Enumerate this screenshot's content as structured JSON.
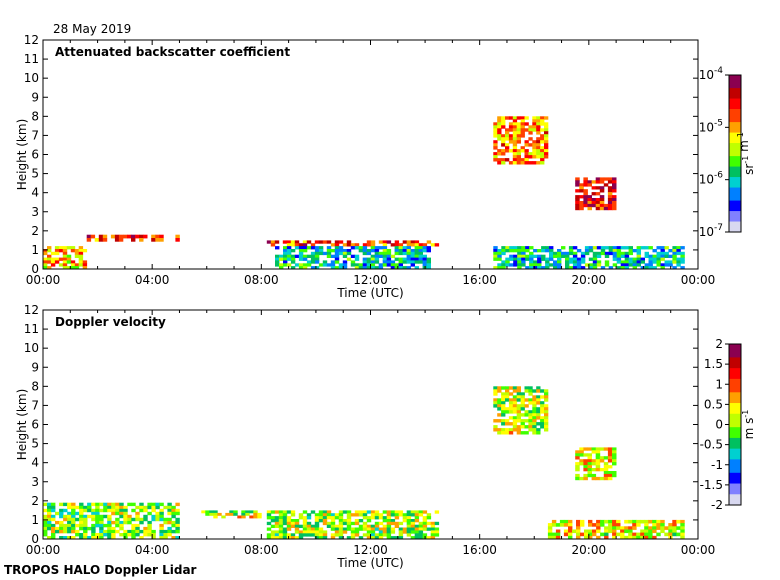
{
  "date": "28 May 2019",
  "footer": "TROPOS HALO Doppler Lidar",
  "colors": {
    "cmap": [
      "#ffffff",
      "#d8d8f0",
      "#8080ff",
      "#0000ff",
      "#0080ff",
      "#00d0d0",
      "#00c060",
      "#40ff00",
      "#c0ff00",
      "#ffff00",
      "#ffa000",
      "#ff4000",
      "#ff0000",
      "#c00000",
      "#8b0050"
    ]
  },
  "chart_data": [
    {
      "type": "heatmap",
      "title": "Attenuated backscatter coefficient",
      "xlabel": "Time (UTC)",
      "ylabel": "Height (km)",
      "xticks": [
        "00:00",
        "04:00",
        "08:00",
        "12:00",
        "16:00",
        "20:00",
        "00:00"
      ],
      "xlim": [
        0,
        24
      ],
      "ylim": [
        0,
        12
      ],
      "yticks": [
        "0",
        "1",
        "2",
        "3",
        "4",
        "5",
        "6",
        "7",
        "8",
        "9",
        "10",
        "11",
        "12"
      ],
      "colorbar": {
        "scale": "log",
        "ticks": [
          {
            "base": "10",
            "exp": "-4",
            "value": 0.0001
          },
          {
            "base": "10",
            "exp": "-5",
            "value": 1e-05
          },
          {
            "base": "10",
            "exp": "-6",
            "value": 1e-06
          },
          {
            "base": "10",
            "exp": "-7",
            "value": 1e-07
          }
        ],
        "unit": [
          {
            "t": "sr",
            "e": "-1"
          },
          {
            "t": " m",
            "e": "-1"
          }
        ]
      },
      "features": [
        {
          "name": "boundary layer aerosol",
          "t": [
            0,
            1.6
          ],
          "z": [
            0,
            1.2
          ],
          "level": 0.65
        },
        {
          "name": "cloud base layer 1",
          "t": [
            1.6,
            5.0
          ],
          "z": [
            1.45,
            1.8
          ],
          "level": 0.8
        },
        {
          "name": "cloud base layer 2",
          "t": [
            8.2,
            14.5
          ],
          "z": [
            1.2,
            1.5
          ],
          "level": 0.8
        },
        {
          "name": "residual aerosol",
          "t": [
            8.5,
            14.2
          ],
          "z": [
            0,
            1.2
          ],
          "level": 0.35
        },
        {
          "name": "afternoon aerosol",
          "t": [
            16.5,
            23.5
          ],
          "z": [
            0,
            1.2
          ],
          "level": 0.35
        },
        {
          "name": "mid-level cloud",
          "t": [
            19.5,
            21.0
          ],
          "z": [
            3.1,
            4.8
          ],
          "level": 0.85
        },
        {
          "name": "high cloud",
          "t": [
            16.5,
            18.5
          ],
          "z": [
            5.5,
            8.0
          ],
          "level": 0.7
        }
      ]
    },
    {
      "type": "heatmap",
      "title": "Doppler velocity",
      "xlabel": "Time (UTC)",
      "ylabel": "Height (km)",
      "xticks": [
        "00:00",
        "04:00",
        "08:00",
        "12:00",
        "16:00",
        "20:00",
        "00:00"
      ],
      "xlim": [
        0,
        24
      ],
      "ylim": [
        0,
        12
      ],
      "yticks": [
        "0",
        "1",
        "2",
        "3",
        "4",
        "5",
        "6",
        "7",
        "8",
        "9",
        "10",
        "11",
        "12"
      ],
      "colorbar": {
        "scale": "linear",
        "range": [
          -2,
          2
        ],
        "ticks": [
          "2",
          "1.5",
          "1",
          "0.5",
          "0",
          "-0.5",
          "-1",
          "-1.5",
          "-2"
        ],
        "unit": [
          {
            "t": "m s",
            "e": "-1"
          }
        ]
      },
      "features": [
        {
          "name": "boundary layer",
          "t": [
            0,
            5.0
          ],
          "z": [
            0,
            1.9
          ],
          "level": 0.5
        },
        {
          "name": "cloud base layer 1",
          "t": [
            5.8,
            8.0
          ],
          "z": [
            1.1,
            1.5
          ],
          "level": 0.55
        },
        {
          "name": "mixed layer",
          "t": [
            8.2,
            14.5
          ],
          "z": [
            0,
            1.5
          ],
          "level": 0.52
        },
        {
          "name": "afternoon layer",
          "t": [
            18.5,
            23.5
          ],
          "z": [
            0,
            1.0
          ],
          "level": 0.6
        },
        {
          "name": "mid-level cloud",
          "t": [
            19.5,
            21.0
          ],
          "z": [
            3.1,
            4.8
          ],
          "level": 0.6
        },
        {
          "name": "high cloud",
          "t": [
            16.5,
            18.5
          ],
          "z": [
            5.5,
            8.0
          ],
          "level": 0.55
        }
      ]
    }
  ]
}
